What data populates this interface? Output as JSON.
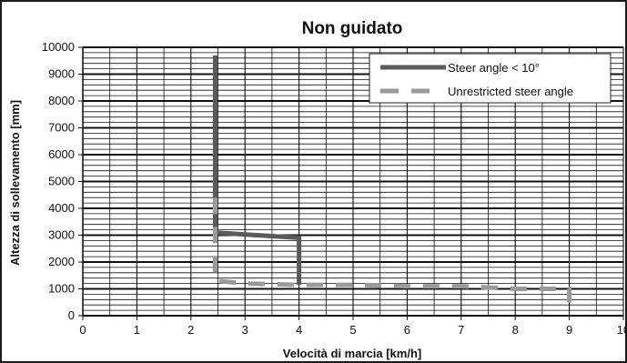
{
  "chart_data": {
    "type": "line",
    "title": "Non guidato",
    "xlabel": "Velocità di marcia [km/h]",
    "ylabel": "Altezza di sollevamento [mm]",
    "xlim": [
      0,
      10
    ],
    "ylim": [
      0,
      10000
    ],
    "x_ticks": [
      "0",
      "1",
      "2",
      "3",
      "4",
      "5",
      "6",
      "7",
      "8",
      "9",
      "10"
    ],
    "y_ticks": [
      "0",
      "1000",
      "2000",
      "3000",
      "4000",
      "5000",
      "6000",
      "7000",
      "8000",
      "9000",
      "10000"
    ],
    "grid": true,
    "legend_position": "top-right",
    "series": [
      {
        "name": "Steer angle < 10°",
        "color": "#5a5a5a",
        "style": "solid",
        "points": [
          [
            2.45,
            9700
          ],
          [
            2.45,
            3100
          ],
          [
            4.0,
            2900
          ],
          [
            4.0,
            1150
          ]
        ]
      },
      {
        "name": "Unrestricted steer angle",
        "color": "#9a9a9a",
        "style": "dashed",
        "points": [
          [
            2.45,
            4400
          ],
          [
            2.45,
            1300
          ],
          [
            3.0,
            1200
          ],
          [
            4.0,
            1150
          ],
          [
            5.0,
            1150
          ],
          [
            6.0,
            1100
          ],
          [
            7.0,
            1100
          ],
          [
            8.0,
            1000
          ],
          [
            9.0,
            1000
          ],
          [
            9.0,
            500
          ]
        ]
      }
    ]
  }
}
